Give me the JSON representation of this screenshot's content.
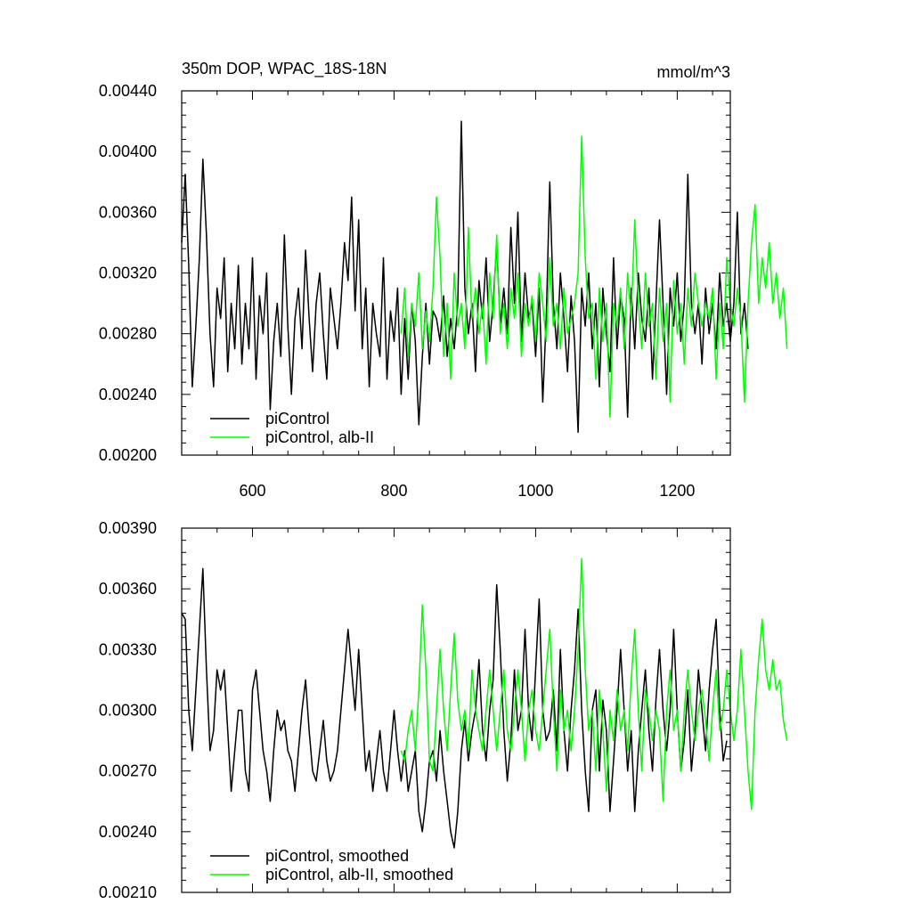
{
  "chart_data": [
    {
      "type": "line",
      "title": "350m DOP, WPAC_18S-18N",
      "units": "mmol/m^3",
      "xlim": [
        500,
        1275
      ],
      "ylim": [
        0.002,
        0.0044
      ],
      "xticks": [
        600,
        800,
        1000,
        1200
      ],
      "xtick_labels": [
        "600",
        "800",
        "1000",
        "1200"
      ],
      "yticks": [
        0.002,
        0.0024,
        0.0028,
        0.0032,
        0.0036,
        0.004,
        0.0044
      ],
      "ytick_labels": [
        "0.00200",
        "0.00240",
        "0.00280",
        "0.00320",
        "0.00360",
        "0.00400",
        "0.00440"
      ],
      "legend": "bottom-left",
      "series": [
        {
          "name": "piControl",
          "color": "#000000",
          "x_start": 500,
          "x_step": 5,
          "values": [
            0.0034,
            0.00385,
            0.00325,
            0.00245,
            0.00285,
            0.0033,
            0.00395,
            0.00345,
            0.0028,
            0.00245,
            0.0031,
            0.0029,
            0.0033,
            0.00255,
            0.003,
            0.0027,
            0.00325,
            0.0026,
            0.003,
            0.0027,
            0.0033,
            0.0025,
            0.00305,
            0.0028,
            0.0032,
            0.0023,
            0.00275,
            0.003,
            0.00265,
            0.00345,
            0.00285,
            0.0024,
            0.0029,
            0.0031,
            0.0027,
            0.00335,
            0.0029,
            0.00255,
            0.003,
            0.0032,
            0.0028,
            0.0025,
            0.0031,
            0.0029,
            0.0027,
            0.003,
            0.0034,
            0.00315,
            0.0037,
            0.00295,
            0.00355,
            0.0027,
            0.0031,
            0.00245,
            0.003,
            0.0028,
            0.00265,
            0.0033,
            0.0025,
            0.00295,
            0.00275,
            0.0031,
            0.0024,
            0.0029,
            0.0025,
            0.003,
            0.00275,
            0.0022,
            0.00265,
            0.003,
            0.0026,
            0.00295,
            0.0029,
            0.00275,
            0.00305,
            0.00265,
            0.0029,
            0.0027,
            0.003,
            0.0042,
            0.0031,
            0.0028,
            0.003,
            0.00255,
            0.00315,
            0.0029,
            0.0033,
            0.00275,
            0.003,
            0.0034,
            0.00285,
            0.0031,
            0.0028,
            0.0035,
            0.003,
            0.0036,
            0.00275,
            0.0032,
            0.0029,
            0.003,
            0.00265,
            0.0031,
            0.00235,
            0.0029,
            0.0038,
            0.003,
            0.0027,
            0.0032,
            0.0029,
            0.00255,
            0.00305,
            0.00275,
            0.00215,
            0.0031,
            0.00285,
            0.0032,
            0.0027,
            0.003,
            0.00245,
            0.0031,
            0.0028,
            0.00255,
            0.0033,
            0.0027,
            0.00305,
            0.0029,
            0.00225,
            0.0031,
            0.0027,
            0.0032,
            0.0029,
            0.00275,
            0.0031,
            0.0025,
            0.003,
            0.00355,
            0.003,
            0.0024,
            0.0031,
            0.00285,
            0.0032,
            0.00275,
            0.003,
            0.00385,
            0.003,
            0.0028,
            0.003,
            0.0026,
            0.0031,
            0.0028,
            0.003,
            0.0027,
            0.0032,
            0.00285,
            0.003,
            0.00275,
            0.003,
            0.0036,
            0.0028,
            0.003,
            0.0027
          ]
        },
        {
          "name": "piControl, alb-II",
          "color": "#00ff00",
          "x_start": 810,
          "x_step": 5,
          "values": [
            0.0028,
            0.0031,
            0.00265,
            0.003,
            0.00285,
            0.0032,
            0.0027,
            0.00295,
            0.00275,
            0.0031,
            0.0037,
            0.0033,
            0.00265,
            0.003,
            0.0025,
            0.0032,
            0.00285,
            0.003,
            0.0027,
            0.0035,
            0.0029,
            0.0031,
            0.0028,
            0.003,
            0.0026,
            0.0032,
            0.0029,
            0.00345,
            0.0028,
            0.003,
            0.0027,
            0.0031,
            0.0029,
            0.0032,
            0.00265,
            0.003,
            0.00285,
            0.00305,
            0.00275,
            0.0032,
            0.003,
            0.00275,
            0.0033,
            0.00285,
            0.003,
            0.0027,
            0.0031,
            0.0028,
            0.0029,
            0.003,
            0.0032,
            0.0041,
            0.0033,
            0.0029,
            0.003,
            0.0025,
            0.0031,
            0.00275,
            0.003,
            0.00225,
            0.003,
            0.00285,
            0.0031,
            0.0027,
            0.0032,
            0.0029,
            0.00355,
            0.003,
            0.0027,
            0.0032,
            0.00285,
            0.003,
            0.0025,
            0.0031,
            0.00275,
            0.003,
            0.00235,
            0.00315,
            0.0028,
            0.003,
            0.0026,
            0.0031,
            0.00285,
            0.0032,
            0.003,
            0.00285,
            0.003,
            0.0029,
            0.0031,
            0.0025,
            0.003,
            0.0027,
            0.0033,
            0.003,
            0.00285,
            0.0031,
            0.0029,
            0.00235,
            0.003,
            0.0034,
            0.00365,
            0.003,
            0.0033,
            0.0031,
            0.0034,
            0.003,
            0.0032,
            0.0029,
            0.0031,
            0.0027
          ]
        }
      ]
    },
    {
      "type": "line",
      "xlim": [
        500,
        1275
      ],
      "ylim": [
        0.0021,
        0.0039
      ],
      "xticks": [
        600,
        800,
        1000,
        1200
      ],
      "yticks": [
        0.0021,
        0.0024,
        0.0027,
        0.003,
        0.0033,
        0.0036,
        0.0039
      ],
      "ytick_labels": [
        "0.00210",
        "0.00240",
        "0.00270",
        "0.00300",
        "0.00330",
        "0.00360",
        "0.00390"
      ],
      "legend": "bottom-left",
      "series": [
        {
          "name": "piControl, smoothed",
          "color": "#000000",
          "x_start": 500,
          "x_step": 5,
          "values": [
            0.00348,
            0.00345,
            0.003,
            0.0028,
            0.0031,
            0.0034,
            0.0037,
            0.0032,
            0.0028,
            0.0029,
            0.0032,
            0.0031,
            0.0032,
            0.0029,
            0.0026,
            0.0028,
            0.003,
            0.003,
            0.0027,
            0.0026,
            0.0031,
            0.0032,
            0.003,
            0.0028,
            0.0027,
            0.00255,
            0.0028,
            0.003,
            0.0029,
            0.00295,
            0.0028,
            0.00275,
            0.0026,
            0.0028,
            0.003,
            0.00315,
            0.0029,
            0.0027,
            0.00265,
            0.0028,
            0.00295,
            0.00275,
            0.00265,
            0.0027,
            0.0028,
            0.003,
            0.0032,
            0.0034,
            0.0032,
            0.003,
            0.0033,
            0.003,
            0.0027,
            0.0028,
            0.0026,
            0.00275,
            0.0029,
            0.0027,
            0.0026,
            0.0028,
            0.003,
            0.0028,
            0.00265,
            0.0028,
            0.0026,
            0.0027,
            0.0028,
            0.0025,
            0.0024,
            0.00255,
            0.00275,
            0.0028,
            0.00265,
            0.0029,
            0.0027,
            0.00255,
            0.0024,
            0.00232,
            0.0025,
            0.0028,
            0.00295,
            0.00275,
            0.0029,
            0.003,
            0.00325,
            0.0029,
            0.00275,
            0.003,
            0.00315,
            0.00362,
            0.0033,
            0.0029,
            0.00265,
            0.00285,
            0.0032,
            0.0029,
            0.003,
            0.0034,
            0.003,
            0.00285,
            0.0032,
            0.00355,
            0.003,
            0.00285,
            0.0029,
            0.0031,
            0.0028,
            0.0033,
            0.0029,
            0.0027,
            0.003,
            0.0032,
            0.0035,
            0.003,
            0.0027,
            0.0025,
            0.003,
            0.0031,
            0.0027,
            0.00305,
            0.0029,
            0.0025,
            0.00275,
            0.003,
            0.0033,
            0.003,
            0.0027,
            0.0029,
            0.0025,
            0.0028,
            0.003,
            0.0032,
            0.0029,
            0.0027,
            0.00305,
            0.0033,
            0.003,
            0.0028,
            0.003,
            0.0034,
            0.003,
            0.0027,
            0.00285,
            0.0031,
            0.0027,
            0.0029,
            0.0032,
            0.003,
            0.0028,
            0.0031,
            0.0033,
            0.00345,
            0.003,
            0.00275,
            0.00285
          ]
        },
        {
          "name": "piControl, alb-II, smoothed",
          "color": "#00ff00",
          "x_start": 810,
          "x_step": 5,
          "values": [
            0.0028,
            0.00275,
            0.0029,
            0.003,
            0.0028,
            0.0031,
            0.00352,
            0.0032,
            0.00275,
            0.0027,
            0.003,
            0.0033,
            0.003,
            0.0028,
            0.0031,
            0.00338,
            0.00305,
            0.0029,
            0.003,
            0.0028,
            0.0032,
            0.003,
            0.0029,
            0.0028,
            0.003,
            0.0032,
            0.003,
            0.0028,
            0.003,
            0.0032,
            0.0029,
            0.0028,
            0.003,
            0.0032,
            0.003,
            0.00275,
            0.003,
            0.0031,
            0.0029,
            0.0028,
            0.003,
            0.0032,
            0.0034,
            0.003,
            0.0027,
            0.0031,
            0.0029,
            0.003,
            0.0028,
            0.003,
            0.0033,
            0.00375,
            0.0032,
            0.0029,
            0.003,
            0.0027,
            0.0031,
            0.0029,
            0.0026,
            0.003,
            0.00285,
            0.0031,
            0.0029,
            0.003,
            0.0028,
            0.00315,
            0.0034,
            0.003,
            0.0027,
            0.0031,
            0.003,
            0.00285,
            0.003,
            0.0029,
            0.00255,
            0.003,
            0.0032,
            0.0029,
            0.003,
            0.0027,
            0.003,
            0.0032,
            0.003,
            0.00285,
            0.003,
            0.0031,
            0.00295,
            0.00275,
            0.003,
            0.0032,
            0.0029,
            0.003,
            0.0032,
            0.003,
            0.00285,
            0.003,
            0.0033,
            0.003,
            0.0027,
            0.00251,
            0.003,
            0.00325,
            0.00345,
            0.0032,
            0.0031,
            0.00325,
            0.0031,
            0.00315,
            0.00295,
            0.00285
          ]
        }
      ]
    }
  ]
}
